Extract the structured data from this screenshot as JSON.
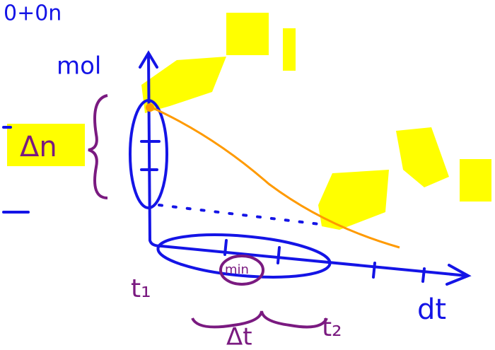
{
  "header": {
    "corner_note": "0+0n"
  },
  "axes": {
    "y_label": "mol",
    "x_label": "dt"
  },
  "annotations": {
    "delta_n": "Δn",
    "delta_t": "Δt",
    "t1": "t₁",
    "t2": "t₂",
    "min": "min"
  }
}
